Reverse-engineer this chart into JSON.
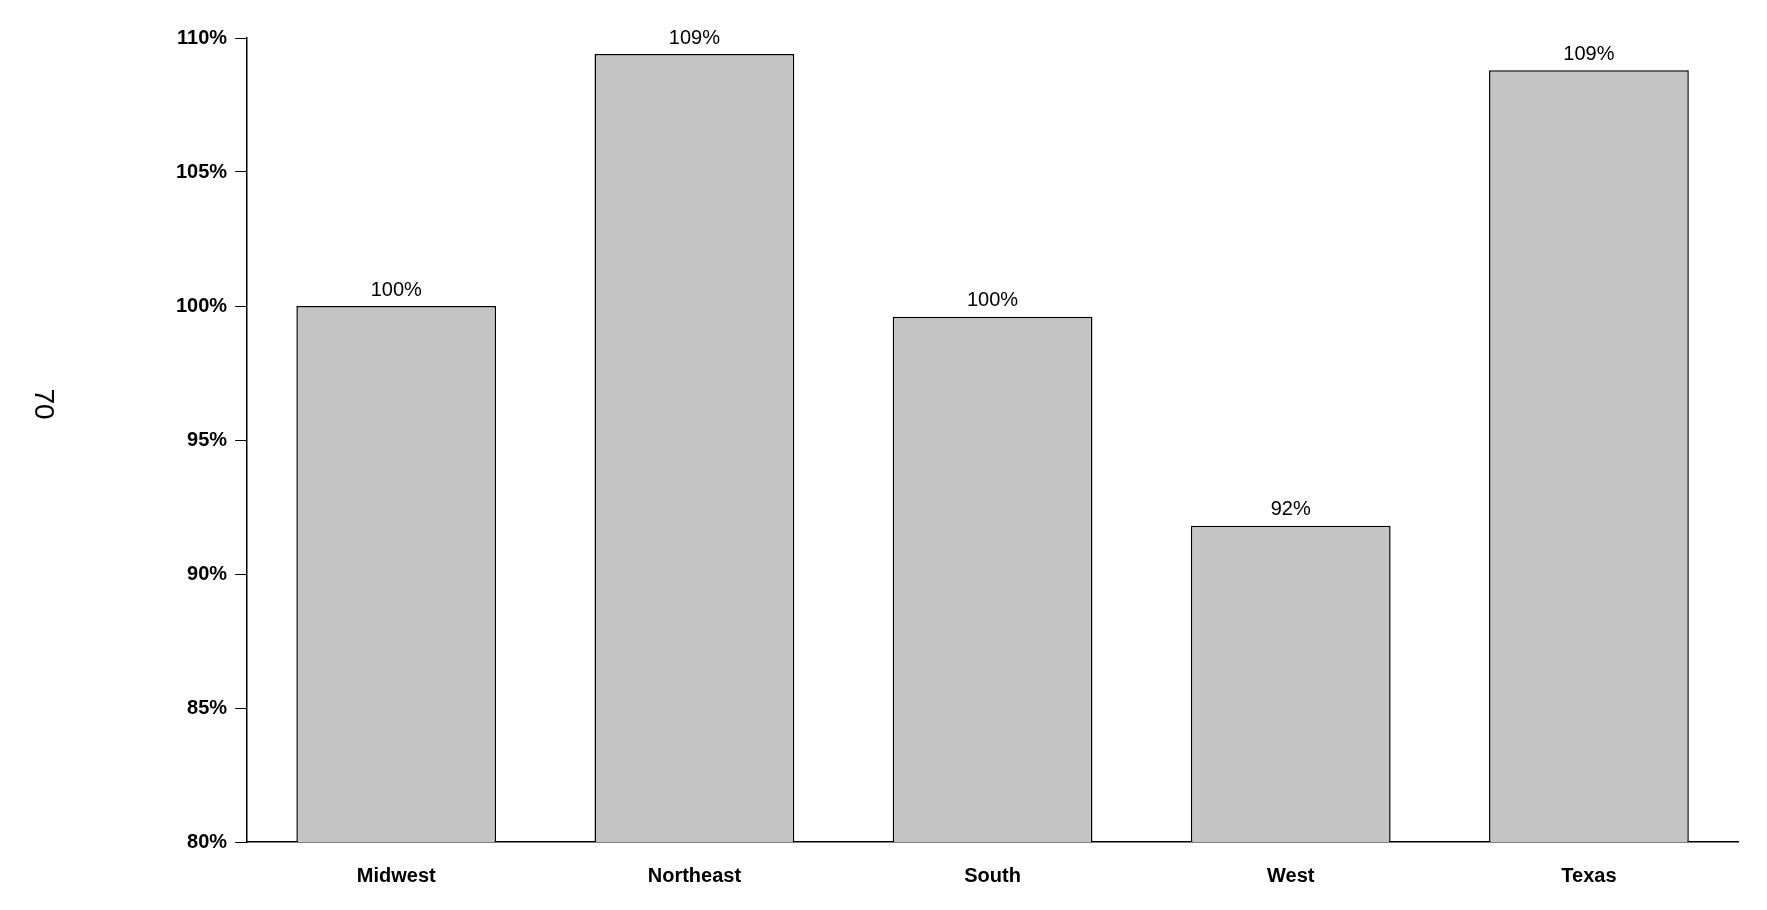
{
  "chart_data": {
    "type": "bar",
    "categories": [
      "Midwest",
      "Northeast",
      "South",
      "West",
      "Texas"
    ],
    "values": [
      100.0,
      109.4,
      99.6,
      91.8,
      108.8
    ],
    "value_labels": [
      "100%",
      "109%",
      "100%",
      "92%",
      "109%"
    ],
    "color": "#c4c4c4",
    "ylim": [
      80,
      110
    ],
    "yticks": [
      {
        "value": 80,
        "label": "80%"
      },
      {
        "value": 85,
        "label": "85%"
      },
      {
        "value": 90,
        "label": "90%"
      },
      {
        "value": 95,
        "label": "95%"
      },
      {
        "value": 100,
        "label": "100%"
      },
      {
        "value": 105,
        "label": "105%"
      },
      {
        "value": 110,
        "label": "110%"
      }
    ],
    "grid": false,
    "legend": false,
    "annotations": [
      "70"
    ]
  }
}
